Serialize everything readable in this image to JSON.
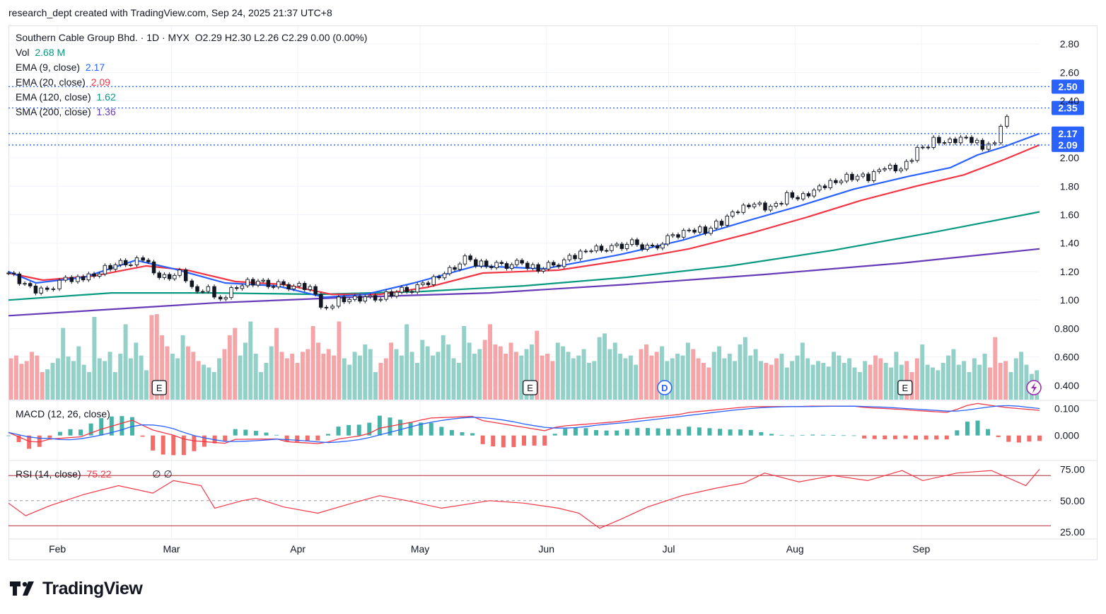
{
  "header": {
    "text": "research_dept created with TradingView.com, Sep 24, 2025 21:37 UTC+8"
  },
  "brand": {
    "name": "TradingView"
  },
  "legend": {
    "symbol": "Southern Cable Group Bhd. · 1D · MYX",
    "ohlc": "O2.29  H2.30  L2.26  C2.29  0.00 (0.00%)",
    "vol_label": "Vol",
    "vol_value": "2.68 M",
    "ema9_label": "EMA (9, close)",
    "ema9_value": "2.17",
    "ema20_label": "EMA (20, close)",
    "ema20_value": "2.09",
    "ema120_label": "EMA (120, close)",
    "ema120_value": "1.62",
    "sma200_label": "SMA (200, close)",
    "sma200_value": "1.36",
    "macd_label": "MACD (12, 26, close)",
    "rsi_label": "RSI (14, close)",
    "rsi_value": "75.22",
    "rsi_extra": "∅  ∅"
  },
  "colors": {
    "up": "#ffffff",
    "down": "#131722",
    "ema9": "#2962ff",
    "ema20": "#f23645",
    "ema120": "#089981",
    "sma200": "#673ab7",
    "vol_up": "#92d0c8",
    "vol_down": "#f5a5a7",
    "price_label_bg": "#2962ff",
    "grid": "#f0f3fa"
  },
  "chart_data": {
    "type": "candlestick",
    "title": "Southern Cable Group Bhd. · 1D · MYX",
    "x_range": [
      "2025-01-20",
      "2025-09-30"
    ],
    "x_ticks": [
      {
        "date": "2025-02-01",
        "label": "Feb"
      },
      {
        "date": "2025-03-01",
        "label": "Mar"
      },
      {
        "date": "2025-04-01",
        "label": "Apr"
      },
      {
        "date": "2025-05-01",
        "label": "May"
      },
      {
        "date": "2025-06-01",
        "label": "Jun"
      },
      {
        "date": "2025-07-01",
        "label": "Jul"
      },
      {
        "date": "2025-08-01",
        "label": "Aug"
      },
      {
        "date": "2025-09-01",
        "label": "Sep"
      }
    ],
    "price_axis": {
      "ylim": [
        0.3,
        2.88
      ],
      "ticks": [
        "2.80",
        "2.60",
        "2.40",
        "2.00",
        "1.80",
        "1.60",
        "1.40",
        "1.20",
        "1.00",
        "0.800",
        "0.600",
        "0.400"
      ]
    },
    "price_lines": [
      {
        "value": 2.5,
        "label": "2.50"
      },
      {
        "value": 2.35,
        "label": "2.35"
      },
      {
        "value": 2.17,
        "label": "2.17"
      },
      {
        "value": 2.09,
        "label": "2.09"
      }
    ],
    "ohlc_close": [
      {
        "date": "2025-01-20",
        "c": 1.19
      },
      {
        "date": "2025-01-24",
        "c": 1.1
      },
      {
        "date": "2025-01-28",
        "c": 1.06
      },
      {
        "date": "2025-02-03",
        "c": 1.14
      },
      {
        "date": "2025-02-06",
        "c": 1.16
      },
      {
        "date": "2025-02-10",
        "c": 1.18
      },
      {
        "date": "2025-02-14",
        "c": 1.24
      },
      {
        "date": "2025-02-19",
        "c": 1.27
      },
      {
        "date": "2025-02-22",
        "c": 1.29
      },
      {
        "date": "2025-02-26",
        "c": 1.15
      },
      {
        "date": "2025-03-03",
        "c": 1.19
      },
      {
        "date": "2025-03-06",
        "c": 1.07
      },
      {
        "date": "2025-03-10",
        "c": 1.08
      },
      {
        "date": "2025-03-13",
        "c": 1.01
      },
      {
        "date": "2025-03-17",
        "c": 1.1
      },
      {
        "date": "2025-03-21",
        "c": 1.13
      },
      {
        "date": "2025-03-26",
        "c": 1.11
      },
      {
        "date": "2025-03-31",
        "c": 1.1
      },
      {
        "date": "2025-04-04",
        "c": 1.08
      },
      {
        "date": "2025-04-08",
        "c": 0.92
      },
      {
        "date": "2025-04-11",
        "c": 1.0
      },
      {
        "date": "2025-04-15",
        "c": 1.02
      },
      {
        "date": "2025-04-20",
        "c": 1.01
      },
      {
        "date": "2025-04-24",
        "c": 1.05
      },
      {
        "date": "2025-04-29",
        "c": 1.08
      },
      {
        "date": "2025-05-03",
        "c": 1.12
      },
      {
        "date": "2025-05-07",
        "c": 1.18
      },
      {
        "date": "2025-05-12",
        "c": 1.29
      },
      {
        "date": "2025-05-16",
        "c": 1.25
      },
      {
        "date": "2025-05-21",
        "c": 1.24
      },
      {
        "date": "2025-05-26",
        "c": 1.26
      },
      {
        "date": "2025-05-30",
        "c": 1.22
      },
      {
        "date": "2025-06-04",
        "c": 1.26
      },
      {
        "date": "2025-06-08",
        "c": 1.31
      },
      {
        "date": "2025-06-12",
        "c": 1.35
      },
      {
        "date": "2025-06-17",
        "c": 1.37
      },
      {
        "date": "2025-06-22",
        "c": 1.4
      },
      {
        "date": "2025-06-27",
        "c": 1.36
      },
      {
        "date": "2025-07-02",
        "c": 1.45
      },
      {
        "date": "2025-07-06",
        "c": 1.5
      },
      {
        "date": "2025-07-10",
        "c": 1.49
      },
      {
        "date": "2025-07-14",
        "c": 1.55
      },
      {
        "date": "2025-07-18",
        "c": 1.63
      },
      {
        "date": "2025-07-22",
        "c": 1.67
      },
      {
        "date": "2025-07-26",
        "c": 1.64
      },
      {
        "date": "2025-07-30",
        "c": 1.73
      },
      {
        "date": "2025-08-03",
        "c": 1.73
      },
      {
        "date": "2025-08-07",
        "c": 1.8
      },
      {
        "date": "2025-08-11",
        "c": 1.84
      },
      {
        "date": "2025-08-15",
        "c": 1.87
      },
      {
        "date": "2025-08-19",
        "c": 1.86
      },
      {
        "date": "2025-08-23",
        "c": 1.93
      },
      {
        "date": "2025-08-27",
        "c": 1.91
      },
      {
        "date": "2025-08-31",
        "c": 2.05
      },
      {
        "date": "2025-09-04",
        "c": 2.12
      },
      {
        "date": "2025-09-08",
        "c": 2.12
      },
      {
        "date": "2025-09-12",
        "c": 2.15
      },
      {
        "date": "2025-09-16",
        "c": 2.08
      },
      {
        "date": "2025-09-19",
        "c": 2.13
      },
      {
        "date": "2025-09-22",
        "c": 2.29
      }
    ],
    "ema9": [
      [
        0,
        1.2
      ],
      [
        8,
        1.12
      ],
      [
        22,
        1.16
      ],
      [
        37,
        1.28
      ],
      [
        48,
        1.22
      ],
      [
        63,
        1.12
      ],
      [
        78,
        1.1
      ],
      [
        92,
        1.02
      ],
      [
        104,
        1.04
      ],
      [
        118,
        1.12
      ],
      [
        136,
        1.24
      ],
      [
        156,
        1.22
      ],
      [
        178,
        1.32
      ],
      [
        196,
        1.42
      ],
      [
        214,
        1.55
      ],
      [
        230,
        1.66
      ],
      [
        246,
        1.78
      ],
      [
        262,
        1.87
      ],
      [
        274,
        1.93
      ],
      [
        282,
        2.02
      ],
      [
        290,
        2.08
      ],
      [
        300,
        2.17
      ]
    ],
    "ema20": [
      [
        0,
        1.19
      ],
      [
        10,
        1.14
      ],
      [
        25,
        1.17
      ],
      [
        40,
        1.24
      ],
      [
        52,
        1.21
      ],
      [
        66,
        1.13
      ],
      [
        80,
        1.11
      ],
      [
        94,
        1.04
      ],
      [
        108,
        1.04
      ],
      [
        122,
        1.09
      ],
      [
        138,
        1.19
      ],
      [
        160,
        1.21
      ],
      [
        182,
        1.29
      ],
      [
        198,
        1.36
      ],
      [
        216,
        1.47
      ],
      [
        232,
        1.58
      ],
      [
        248,
        1.7
      ],
      [
        264,
        1.8
      ],
      [
        278,
        1.88
      ],
      [
        290,
        1.99
      ],
      [
        300,
        2.09
      ]
    ],
    "ema120": [
      [
        0,
        1.0
      ],
      [
        30,
        1.05
      ],
      [
        60,
        1.05
      ],
      [
        90,
        1.04
      ],
      [
        120,
        1.06
      ],
      [
        150,
        1.1
      ],
      [
        180,
        1.16
      ],
      [
        210,
        1.24
      ],
      [
        240,
        1.35
      ],
      [
        270,
        1.48
      ],
      [
        300,
        1.62
      ]
    ],
    "sma200": [
      [
        0,
        0.89
      ],
      [
        60,
        0.98
      ],
      [
        100,
        1.02
      ],
      [
        140,
        1.05
      ],
      [
        180,
        1.11
      ],
      [
        220,
        1.18
      ],
      [
        260,
        1.26
      ],
      [
        300,
        1.36
      ]
    ],
    "volume_axis": {
      "ylim": [
        0,
        1.0
      ]
    },
    "volume": [
      0.45,
      0.48,
      0.39,
      0.42,
      0.52,
      0.48,
      0.3,
      0.33,
      0.4,
      0.45,
      0.78,
      0.47,
      0.42,
      0.58,
      0.38,
      0.3,
      0.9,
      0.45,
      0.42,
      0.52,
      0.3,
      0.5,
      0.82,
      0.45,
      0.62,
      0.48,
      0.32,
      0.92,
      0.93,
      0.7,
      0.58,
      0.5,
      0.45,
      0.7,
      0.58,
      0.52,
      0.42,
      0.38,
      0.35,
      0.3,
      0.45,
      0.55,
      0.7,
      0.78,
      0.48,
      0.62,
      0.85,
      0.5,
      0.3,
      0.4,
      0.58,
      0.78,
      0.52,
      0.45,
      0.5,
      0.4,
      0.52,
      0.55,
      0.8,
      0.62,
      0.5,
      0.55,
      0.48,
      0.85,
      0.45,
      0.38,
      0.52,
      0.48,
      0.6,
      0.55,
      0.3,
      0.4,
      0.45,
      0.62,
      0.55,
      0.48,
      0.82,
      0.52,
      0.4,
      0.65,
      0.58,
      0.48,
      0.52,
      0.7,
      0.6,
      0.45,
      0.4,
      0.8,
      0.62,
      0.5,
      0.55,
      0.65,
      0.82,
      0.6,
      0.58,
      0.5,
      0.62,
      0.52,
      0.48,
      0.55,
      0.6,
      0.75,
      0.48,
      0.5,
      0.42,
      0.62,
      0.58,
      0.52,
      0.45,
      0.48,
      0.55,
      0.4,
      0.42,
      0.68,
      0.72,
      0.55,
      0.62,
      0.5,
      0.45,
      0.48,
      0.38,
      0.55,
      0.6,
      0.48,
      0.52,
      0.58,
      0.42,
      0.45,
      0.5,
      0.48,
      0.62,
      0.55,
      0.45,
      0.4,
      0.35,
      0.52,
      0.58,
      0.45,
      0.5,
      0.42,
      0.6,
      0.68,
      0.48,
      0.55,
      0.42,
      0.4,
      0.38,
      0.45,
      0.5,
      0.35,
      0.42,
      0.48,
      0.62,
      0.45,
      0.38,
      0.42,
      0.4,
      0.36,
      0.52,
      0.48,
      0.4,
      0.45,
      0.35,
      0.3,
      0.42,
      0.38,
      0.48,
      0.45,
      0.4,
      0.35,
      0.52,
      0.38,
      0.42,
      0.3,
      0.45,
      0.6,
      0.38,
      0.35,
      0.32,
      0.4,
      0.48,
      0.55,
      0.38,
      0.42,
      0.3,
      0.45,
      0.38,
      0.5,
      0.35,
      0.68,
      0.4,
      0.42,
      0.3,
      0.45,
      0.52,
      0.38,
      0.28,
      0.32
    ],
    "markers": [
      {
        "date": "2025-02-26",
        "label": "E"
      },
      {
        "date": "2025-05-28",
        "label": "E"
      },
      {
        "date": "2025-06-30",
        "label": "D"
      },
      {
        "date": "2025-08-28",
        "label": "E"
      }
    ],
    "macd_axis": {
      "ylim": [
        -0.09,
        0.13
      ],
      "ticks": [
        "0.100",
        "0.000"
      ]
    },
    "rsi_axis": {
      "ylim": [
        20,
        82
      ],
      "ticks": [
        "75.00",
        "50.00",
        "25.00"
      ],
      "upper": 70,
      "lower": 30,
      "mid": 50
    },
    "rsi": [
      [
        0,
        48
      ],
      [
        5,
        38
      ],
      [
        12,
        46
      ],
      [
        22,
        55
      ],
      [
        32,
        62
      ],
      [
        42,
        56
      ],
      [
        48,
        66
      ],
      [
        56,
        62
      ],
      [
        60,
        44
      ],
      [
        68,
        50
      ],
      [
        72,
        52
      ],
      [
        80,
        45
      ],
      [
        90,
        40
      ],
      [
        100,
        48
      ],
      [
        108,
        54
      ],
      [
        116,
        50
      ],
      [
        126,
        44
      ],
      [
        140,
        50
      ],
      [
        150,
        48
      ],
      [
        160,
        44
      ],
      [
        166,
        40
      ],
      [
        172,
        28
      ],
      [
        178,
        35
      ],
      [
        186,
        45
      ],
      [
        196,
        54
      ],
      [
        206,
        60
      ],
      [
        214,
        64
      ],
      [
        220,
        72
      ],
      [
        230,
        65
      ],
      [
        240,
        70
      ],
      [
        250,
        66
      ],
      [
        260,
        74
      ],
      [
        266,
        66
      ],
      [
        276,
        72
      ],
      [
        286,
        74
      ],
      [
        296,
        62
      ],
      [
        300,
        75
      ]
    ]
  }
}
